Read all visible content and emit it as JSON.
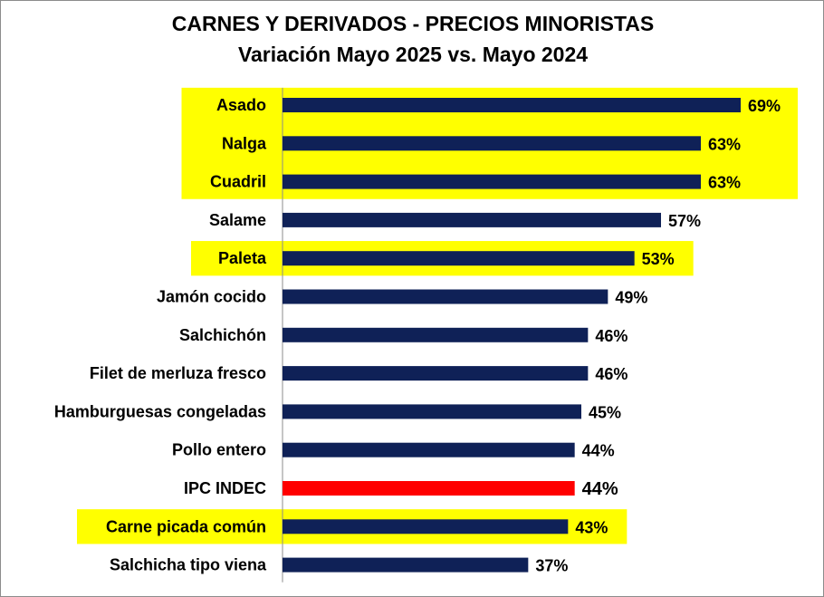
{
  "chart_data": {
    "type": "bar",
    "orientation": "horizontal",
    "title": "CARNES Y DERIVADOS - PRECIOS MINORISTAS",
    "subtitle": "Variación Mayo 2025 vs. Mayo 2024",
    "categories": [
      "Asado",
      "Nalga",
      "Cuadril",
      "Salame",
      "Paleta",
      "Jamón cocido",
      "Salchichón",
      "Filet de merluza fresco",
      "Hamburguesas congeladas",
      "Pollo entero",
      "IPC INDEC",
      "Carne picada común",
      "Salchicha tipo viena"
    ],
    "values": [
      69,
      63,
      63,
      57,
      53,
      49,
      46,
      46,
      45,
      44,
      44,
      43,
      37
    ],
    "value_labels": [
      "69%",
      "63%",
      "63%",
      "57%",
      "53%",
      "49%",
      "46%",
      "46%",
      "45%",
      "44%",
      "44%",
      "43%",
      "37%"
    ],
    "highlighted": [
      "Asado",
      "Nalga",
      "Cuadril",
      "Paleta",
      "Carne picada común"
    ],
    "reference_category": "IPC INDEC",
    "xlim": [
      0,
      69
    ],
    "grid": false,
    "colors": {
      "bar": "#0f2157",
      "reference_bar": "#ff0000",
      "highlight": "#ffff00",
      "reference_label": "#ff0000"
    }
  }
}
